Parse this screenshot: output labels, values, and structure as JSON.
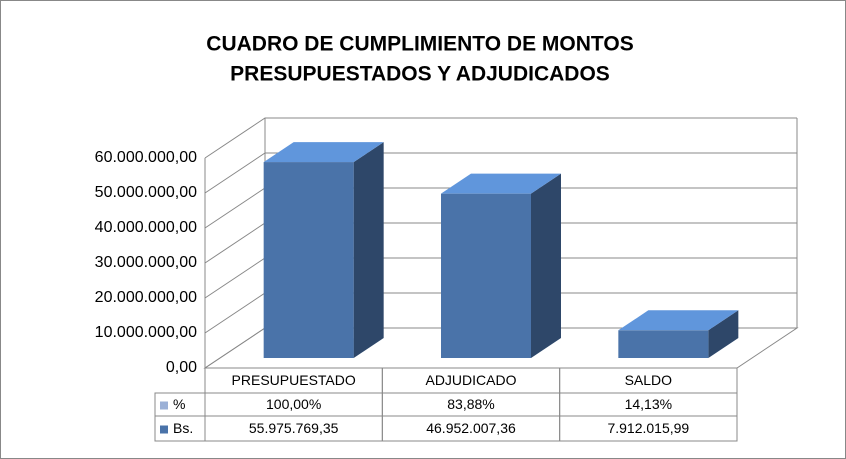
{
  "chart_data": {
    "type": "bar3d",
    "title": [
      "CUADRO DE CUMPLIMIENTO DE MONTOS",
      "PRESUPUESTADOS Y ADJUDICADOS"
    ],
    "categories": [
      "PRESUPUESTADO",
      "ADJUDICADO",
      "SALDO"
    ],
    "series": [
      {
        "name": "%",
        "color": "#9bb0d6",
        "values": [
          100,
          83.88,
          14.13
        ],
        "value_labels": [
          "100,00%",
          "83,88%",
          "14,13%"
        ]
      },
      {
        "name": "Bs.",
        "color": "#4a73a9",
        "values": [
          55975769.35,
          46952007.36,
          7912015.99
        ],
        "value_labels": [
          "55.975.769,35",
          "46.952.007,36",
          "7.912.015,99"
        ]
      }
    ],
    "ylim": [
      0,
      60000000
    ],
    "yticks": [
      {
        "value": 0,
        "label": "0,00"
      },
      {
        "value": 10000000,
        "label": "10.000.000,00"
      },
      {
        "value": 20000000,
        "label": "20.000.000,00"
      },
      {
        "value": 30000000,
        "label": "30.000.000,00"
      },
      {
        "value": 40000000,
        "label": "40.000.000,00"
      },
      {
        "value": 50000000,
        "label": "50.000.000,00"
      },
      {
        "value": 60000000,
        "label": "60.000.000,00"
      }
    ],
    "grid": true
  }
}
